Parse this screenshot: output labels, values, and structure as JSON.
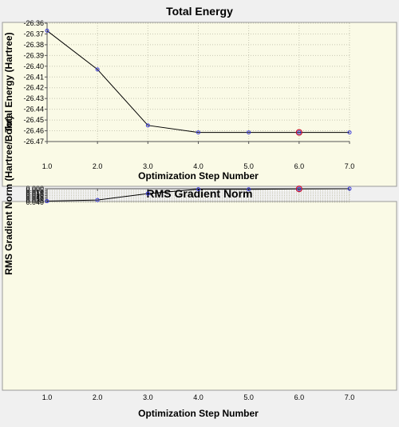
{
  "chart_data": [
    {
      "type": "line",
      "title": "Total Energy",
      "xlabel": "Optimization Step Number",
      "ylabel": "Total Energy (Hartree)",
      "x": [
        1.0,
        2.0,
        3.0,
        4.0,
        5.0,
        6.0,
        7.0
      ],
      "x_ticks": [
        "1.0",
        "2.0",
        "3.0",
        "4.0",
        "5.0",
        "6.0",
        "7.0"
      ],
      "y_ticks": [
        "-26.36",
        "-26.37",
        "-26.38",
        "-26.39",
        "-26.40",
        "-26.41",
        "-26.42",
        "-26.43",
        "-26.44",
        "-26.45",
        "-26.46",
        "-26.47"
      ],
      "xlim": [
        1.0,
        7.0
      ],
      "ylim": [
        -26.47,
        -26.36
      ],
      "grid": true,
      "series": [
        {
          "values": [
            -26.367,
            -26.403,
            -26.455,
            -26.4615,
            -26.4615,
            -26.4615,
            -26.4615
          ]
        }
      ],
      "highlight_index": 5,
      "line_color": "#000000",
      "marker_color": "#3a3ad8",
      "highlight_color": "#c8102e"
    },
    {
      "type": "line",
      "title": "RMS Gradient Norm",
      "xlabel": "Optimization Step Number",
      "ylabel": "RMS Gradient Norm (Hartree/Bohr)",
      "x": [
        1.0,
        2.0,
        3.0,
        4.0,
        5.0,
        6.0,
        7.0
      ],
      "x_ticks": [
        "1.0",
        "2.0",
        "3.0",
        "4.0",
        "5.0",
        "6.0",
        "7.0"
      ],
      "y_ticks": [
        "0.040",
        "0.035",
        "0.030",
        "0.025",
        "0.020",
        "0.015",
        "0.010",
        "0.005",
        "0.000"
      ],
      "xlim": [
        1.0,
        7.0
      ],
      "ylim": [
        0.0,
        0.04
      ],
      "grid": true,
      "series": [
        {
          "values": [
            0.0366,
            0.0332,
            0.0143,
            0.0015,
            0.0018,
            0.0005,
            0.0001
          ]
        }
      ],
      "highlight_index": 5,
      "line_color": "#000000",
      "marker_color": "#3a3ad8",
      "highlight_color": "#c8102e"
    }
  ]
}
